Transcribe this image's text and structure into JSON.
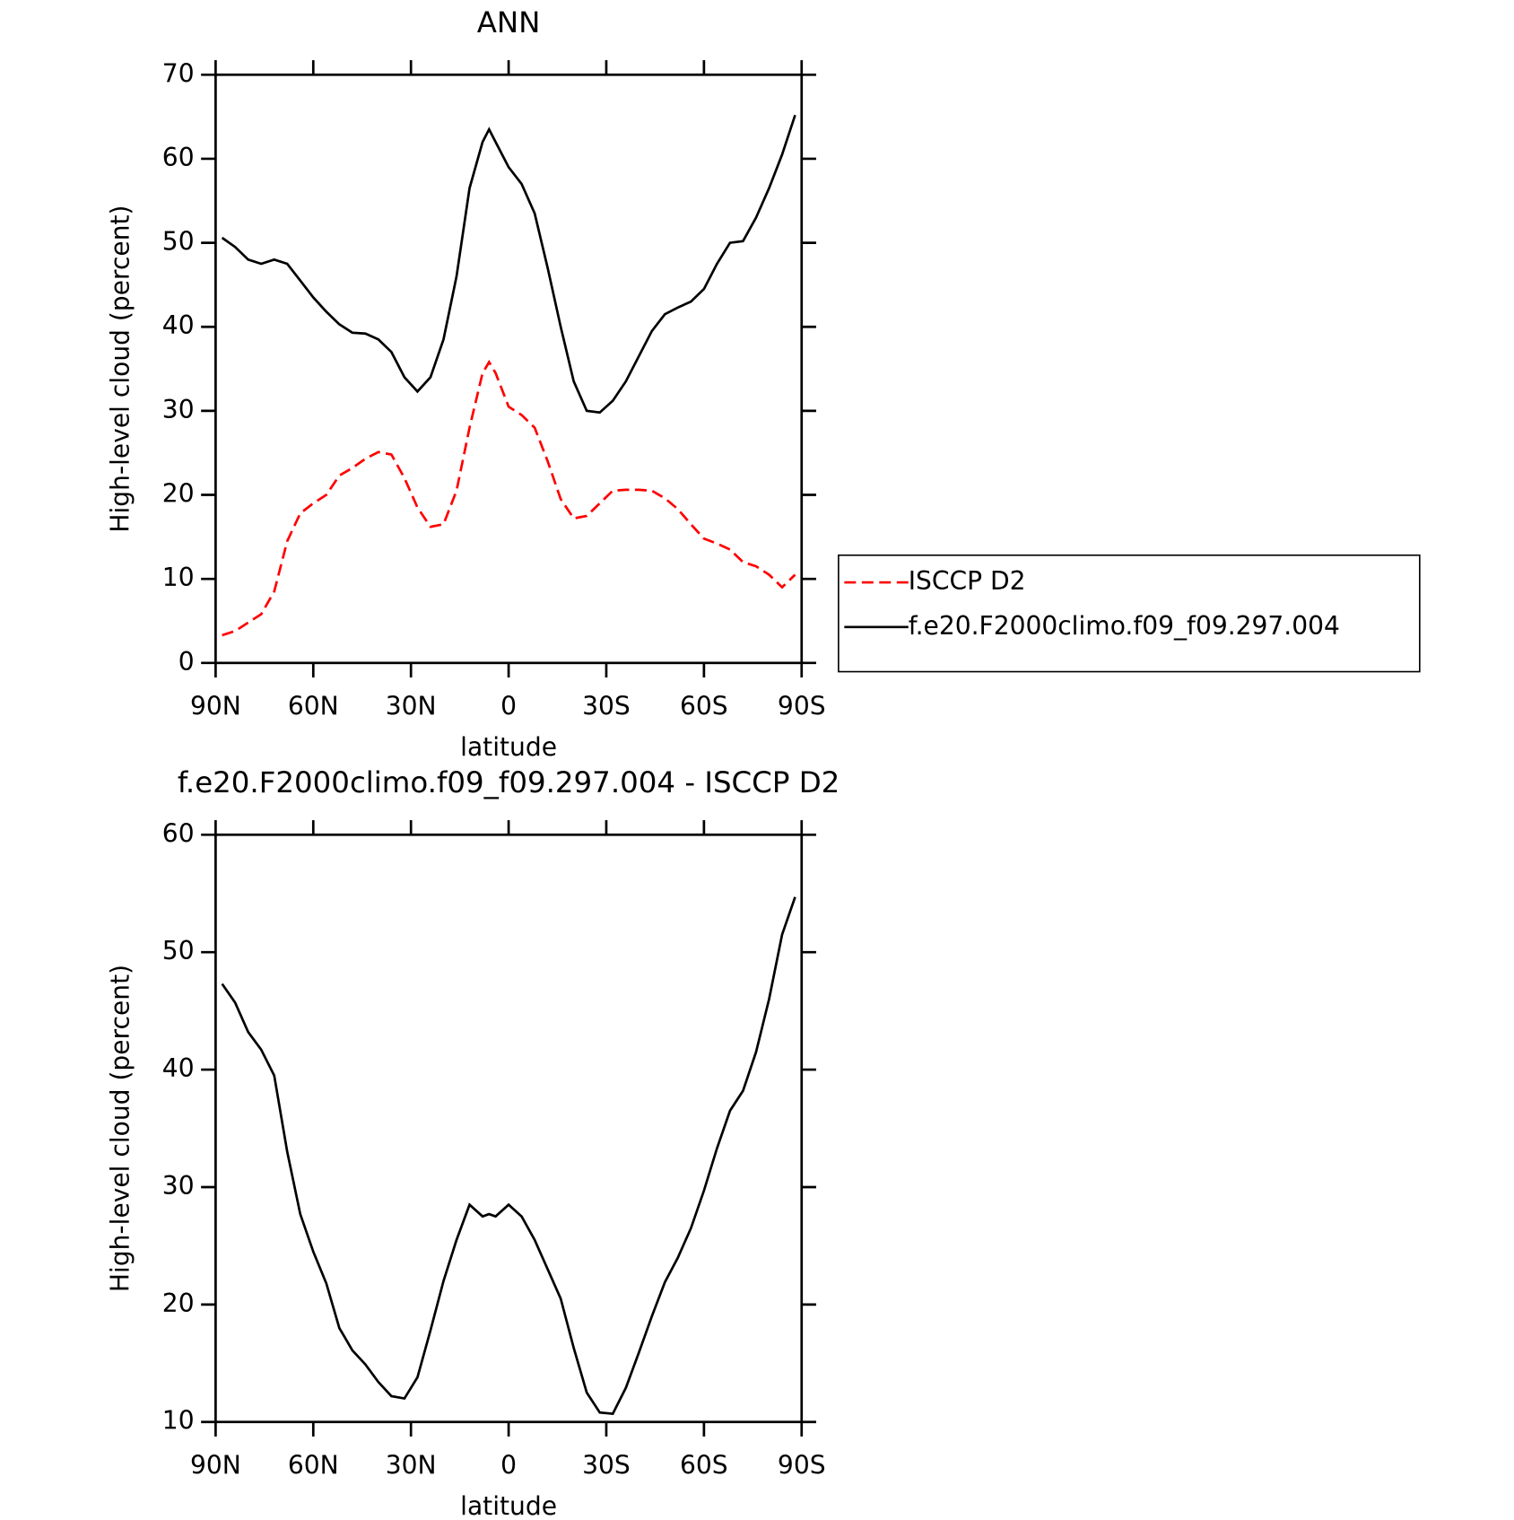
{
  "chart_data": [
    {
      "type": "line",
      "title": "ANN",
      "xlabel": "latitude",
      "ylabel": "High-level cloud (percent)",
      "x": [
        88,
        84,
        80,
        76,
        72,
        68,
        64,
        60,
        56,
        52,
        48,
        44,
        40,
        36,
        32,
        28,
        24,
        20,
        16,
        12,
        8,
        6,
        4,
        0,
        -4,
        -8,
        -12,
        -16,
        -20,
        -24,
        -28,
        -32,
        -36,
        -40,
        -44,
        -48,
        -52,
        -56,
        -60,
        -64,
        -68,
        -72,
        -76,
        -80,
        -84,
        -88
      ],
      "xlim": [
        90,
        -90
      ],
      "xticks": [
        {
          "value": 90,
          "label": "90N"
        },
        {
          "value": 60,
          "label": "60N"
        },
        {
          "value": 30,
          "label": "30N"
        },
        0,
        {
          "value": -30,
          "label": "30S"
        },
        {
          "value": -60,
          "label": "60S"
        },
        {
          "value": -90,
          "label": "90S"
        }
      ],
      "ylim": [
        0,
        70
      ],
      "yticks": [
        0,
        10,
        20,
        30,
        40,
        50,
        60,
        70
      ],
      "legend": "right",
      "series": [
        {
          "name": "ISCCP D2",
          "color": "#ff0000",
          "dash": true,
          "values": [
            3.3,
            3.8,
            4.8,
            5.8,
            8.5,
            14.5,
            17.8,
            19,
            20,
            22.3,
            23.2,
            24.3,
            25.1,
            24.8,
            22,
            18.5,
            16.2,
            16.5,
            20.5,
            28,
            34.5,
            35.8,
            34.5,
            30.5,
            29.5,
            28,
            24,
            19.5,
            17.2,
            17.5,
            19,
            20.5,
            20.6,
            20.6,
            20.5,
            19.6,
            18.3,
            16.5,
            14.8,
            14.2,
            13.5,
            12,
            11.5,
            10.5,
            9,
            10.5
          ]
        },
        {
          "name": "f.e20.F2000climo.f09_f09.297.004",
          "color": "#000000",
          "dash": false,
          "values": [
            50.6,
            49.5,
            48,
            47.5,
            48,
            47.5,
            45.5,
            43.5,
            41.8,
            40.3,
            39.3,
            39.2,
            38.5,
            37,
            34,
            32.3,
            34,
            38.5,
            46,
            56.5,
            62,
            63.5,
            62,
            59,
            57,
            53.5,
            47,
            40,
            33.5,
            30,
            29.8,
            31.2,
            33.5,
            36.5,
            39.5,
            41.5,
            42.3,
            43,
            44.5,
            47.5,
            50,
            50.2,
            53,
            56.5,
            60.5,
            65.2
          ]
        }
      ]
    },
    {
      "type": "line",
      "title": "f.e20.F2000climo.f09_f09.297.004 - ISCCP D2",
      "xlabel": "latitude",
      "ylabel": "High-level cloud (percent)",
      "x": [
        88,
        84,
        80,
        76,
        72,
        68,
        64,
        60,
        56,
        52,
        48,
        44,
        40,
        36,
        32,
        28,
        24,
        20,
        16,
        12,
        8,
        6,
        4,
        0,
        -4,
        -8,
        -12,
        -16,
        -20,
        -24,
        -28,
        -32,
        -36,
        -40,
        -44,
        -48,
        -52,
        -56,
        -60,
        -64,
        -68,
        -72,
        -76,
        -80,
        -84,
        -88
      ],
      "xlim": [
        90,
        -90
      ],
      "xticks": [
        {
          "value": 90,
          "label": "90N"
        },
        {
          "value": 60,
          "label": "60N"
        },
        {
          "value": 30,
          "label": "30N"
        },
        0,
        {
          "value": -30,
          "label": "30S"
        },
        {
          "value": -60,
          "label": "60S"
        },
        {
          "value": -90,
          "label": "90S"
        }
      ],
      "ylim": [
        10,
        60
      ],
      "yticks": [
        10,
        20,
        30,
        40,
        50,
        60
      ],
      "series": [
        {
          "color": "#000000",
          "dash": false,
          "values": [
            47.3,
            45.7,
            43.2,
            41.7,
            39.5,
            33,
            27.7,
            24.5,
            21.8,
            18,
            16.1,
            14.9,
            13.4,
            12.2,
            12,
            13.8,
            17.8,
            22,
            25.5,
            28.5,
            27.5,
            27.7,
            27.5,
            28.5,
            27.5,
            25.5,
            23,
            20.5,
            16.3,
            12.5,
            10.8,
            10.7,
            12.9,
            15.9,
            19,
            21.9,
            24,
            26.5,
            29.7,
            33.3,
            36.5,
            38.2,
            41.5,
            46,
            51.5,
            54.7
          ]
        }
      ]
    }
  ]
}
